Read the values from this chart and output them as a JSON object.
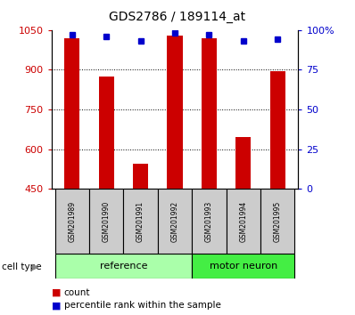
{
  "title": "GDS2786 / 189114_at",
  "samples": [
    "GSM201989",
    "GSM201990",
    "GSM201991",
    "GSM201992",
    "GSM201993",
    "GSM201994",
    "GSM201995"
  ],
  "counts": [
    1020,
    875,
    545,
    1030,
    1020,
    645,
    895
  ],
  "percentiles": [
    97,
    96,
    93,
    98,
    97,
    93,
    94
  ],
  "ylim_left": [
    450,
    1050
  ],
  "ylim_right": [
    0,
    100
  ],
  "yticks_left": [
    450,
    600,
    750,
    900,
    1050
  ],
  "yticks_right": [
    0,
    25,
    50,
    75,
    100
  ],
  "ytick_labels_right": [
    "0",
    "25",
    "50",
    "75",
    "100%"
  ],
  "bar_color": "#cc0000",
  "marker_color": "#0000cc",
  "bar_width": 0.45,
  "groups": [
    {
      "label": "reference",
      "indices": [
        0,
        1,
        2,
        3
      ],
      "color": "#aaffaa"
    },
    {
      "label": "motor neuron",
      "indices": [
        4,
        5,
        6
      ],
      "color": "#44ee44"
    }
  ],
  "group_label": "cell type",
  "legend_count_label": "count",
  "legend_percentile_label": "percentile rank within the sample",
  "tick_label_color_left": "#cc0000",
  "tick_label_color_right": "#0000cc",
  "sample_box_color": "#cccccc",
  "grid_yticks": [
    600,
    750,
    900
  ]
}
